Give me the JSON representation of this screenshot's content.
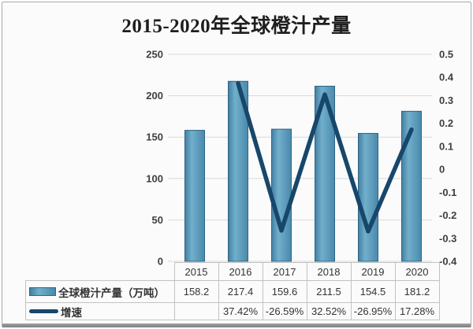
{
  "title": "2015-2020年全球橙汁产量",
  "colors": {
    "bar_fill_edge": "#447fa2",
    "bar_fill_light": "#71afcb",
    "bar_fill_main": "#4a89ab",
    "bar_border": "#2e6585",
    "line": "#17476b",
    "grid": "#d9d9d9",
    "axis_text": "#3f3f3f",
    "table_border": "#c2c2c2",
    "table_text": "#333333"
  },
  "chart_data": {
    "type": "bar+line combo",
    "title": "2015-2020年全球橙汁产量",
    "categories": [
      "2015",
      "2016",
      "2017",
      "2018",
      "2019",
      "2020"
    ],
    "series": [
      {
        "name": "全球橙汁产量（万吨）",
        "type": "bar",
        "axis": "left",
        "values": [
          158.2,
          217.4,
          159.6,
          211.5,
          154.5,
          181.2
        ],
        "labels": [
          "158.2",
          "217.4",
          "159.6",
          "211.5",
          "154.5",
          "181.2"
        ]
      },
      {
        "name": "增速",
        "type": "line",
        "axis": "right",
        "values": [
          null,
          0.3742,
          -0.2659,
          0.3252,
          -0.2695,
          0.1728
        ],
        "labels": [
          "",
          "37.42%",
          "-26.59%",
          "32.52%",
          "-26.95%",
          "17.28%"
        ]
      }
    ],
    "left_axis": {
      "min": 0,
      "max": 250,
      "step": 50,
      "ticks": [
        "250",
        "200",
        "150",
        "100",
        "50",
        "0"
      ]
    },
    "right_axis": {
      "min": -0.4,
      "max": 0.5,
      "step": 0.1,
      "ticks": [
        "0.5",
        "0.4",
        "0.3",
        "0.2",
        "0.1",
        "0",
        "-0.1",
        "-0.2",
        "-0.3",
        "-0.4"
      ]
    },
    "grid": true,
    "legend_position": "table-left"
  }
}
